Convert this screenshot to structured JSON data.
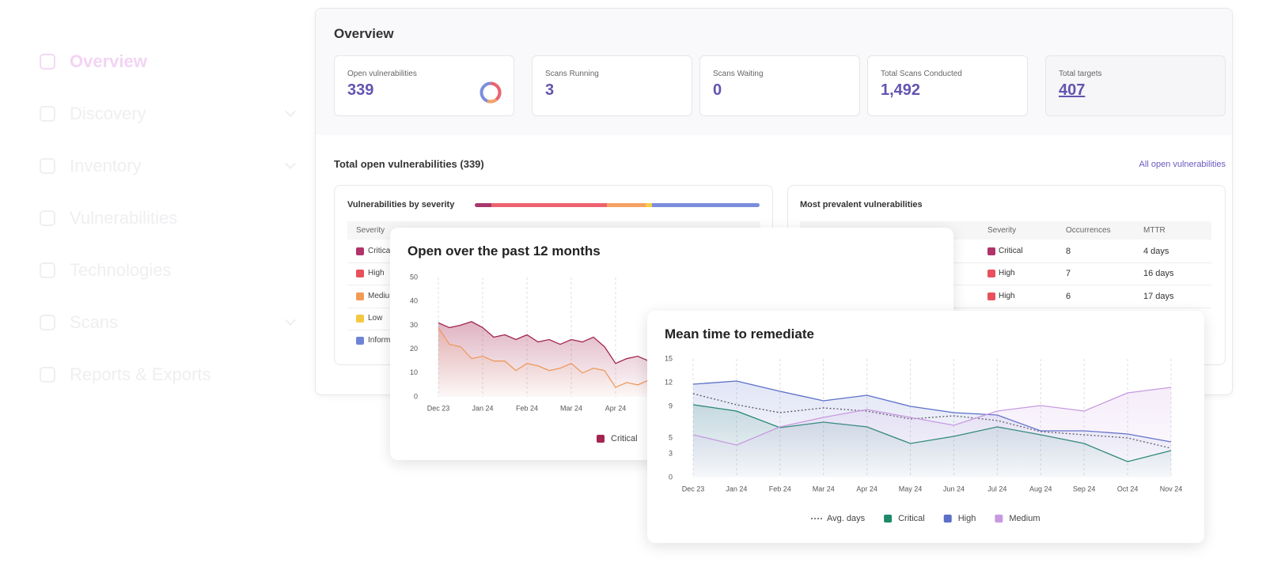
{
  "sidebar": {
    "items": [
      "Overview",
      "Discovery",
      "Inventory",
      "Vulnerabilities",
      "Technologies",
      "Scans",
      "Reports & Exports"
    ]
  },
  "overview": {
    "title": "Overview",
    "stats": [
      {
        "label": "Open vulnerabilities",
        "value": "339"
      },
      {
        "label": "Scans Running",
        "value": "3"
      },
      {
        "label": "Scans Waiting",
        "value": "0"
      },
      {
        "label": "Total Scans Conducted",
        "value": "1,492"
      },
      {
        "label": "Total targets",
        "value": "407"
      }
    ]
  },
  "vulnerabilities": {
    "title": "Total open vulnerabilities (339)",
    "link": "All open vulnerabilities",
    "severity_card": {
      "title": "Vulnerabilities by severity",
      "bar": {
        "type": "bar",
        "values": [
          20,
          137,
          46,
          8,
          128
        ],
        "colors": [
          "#a8386b",
          "#ee6270",
          "#f4a162",
          "#f5cd45",
          "#7b8ddc"
        ]
      },
      "header": "Severity",
      "rows": [
        "Critical",
        "High",
        "Medium",
        "Low",
        "Informational"
      ],
      "colors": [
        "#b0336a",
        "#e8505b",
        "#f29a58",
        "#f5c842",
        "#6f83d6"
      ]
    },
    "prevalent_card": {
      "title": "Most prevalent vulnerabilities",
      "columns": [
        "Severity",
        "Occurrences",
        "MTTR"
      ],
      "rows": [
        [
          "Critical",
          "8",
          "4 days"
        ],
        [
          "High",
          "7",
          "16 days"
        ],
        [
          "High",
          "6",
          "17 days"
        ]
      ],
      "colors": [
        "#b0336a",
        "#e8505b",
        "#e8505b"
      ]
    }
  },
  "open_chart": {
    "type": "line",
    "title": "Open over the past 12 months",
    "x": [
      0,
      0.25,
      0.5,
      0.75,
      1,
      1.25,
      1.5,
      1.75,
      2,
      2.25,
      2.5,
      2.75,
      3,
      3.25,
      3.5,
      3.75,
      4,
      4.25,
      4.5,
      4.75
    ],
    "xlim": [
      0,
      11
    ],
    "xticks": [
      {
        "value": 0,
        "label": "Dec 23"
      },
      {
        "value": 1,
        "label": "Jan 24"
      },
      {
        "value": 2,
        "label": "Feb 24"
      },
      {
        "value": 3,
        "label": "Mar 24"
      },
      {
        "value": 4,
        "label": "Apr 24"
      }
    ],
    "ylim": [
      0,
      50
    ],
    "yticks": [
      0,
      10,
      20,
      30,
      40,
      50
    ],
    "grid": true,
    "area": true,
    "series": [
      {
        "name": "Critical",
        "color": "#a3264f",
        "values": [
          31,
          29,
          30,
          31.5,
          29,
          25,
          26,
          24,
          26,
          23,
          24,
          22,
          24,
          23,
          25,
          21,
          14,
          16,
          17,
          15
        ]
      },
      {
        "color": "#ee9a5e",
        "values": [
          29,
          22,
          21,
          16,
          17,
          15,
          15,
          11,
          14,
          13,
          11,
          12,
          14,
          10,
          12,
          11,
          4,
          6,
          5,
          7
        ]
      }
    ]
  },
  "mttr_chart": {
    "type": "line",
    "title": "Mean time to remediate",
    "x": [
      0,
      1,
      2,
      3,
      4,
      5,
      6,
      7,
      8,
      9,
      10,
      11
    ],
    "xlim": [
      0,
      11
    ],
    "xticks": [
      {
        "value": 0,
        "label": "Dec 23"
      },
      {
        "value": 1,
        "label": "Jan 24"
      },
      {
        "value": 2,
        "label": "Feb 24"
      },
      {
        "value": 3,
        "label": "Mar 24"
      },
      {
        "value": 4,
        "label": "Apr 24"
      },
      {
        "value": 5,
        "label": "May 24"
      },
      {
        "value": 6,
        "label": "Jun 24"
      },
      {
        "value": 7,
        "label": "Jul 24"
      },
      {
        "value": 8,
        "label": "Aug 24"
      },
      {
        "value": 9,
        "label": "Sep 24"
      },
      {
        "value": 10,
        "label": "Oct 24"
      },
      {
        "value": 11,
        "label": "Nov 24"
      }
    ],
    "ylim": [
      0,
      15
    ],
    "yticks": [
      0,
      3,
      5,
      9,
      12,
      15
    ],
    "grid": true,
    "area": true,
    "series": [
      {
        "name": "Avg. days",
        "color": "#555555",
        "dash": "dotted",
        "values": [
          10.6,
          9.2,
          8.2,
          8.8,
          8.4,
          7.4,
          7.8,
          7.2,
          5.8,
          5.4,
          5,
          3.7
        ]
      },
      {
        "name": "Critical",
        "color": "#1f8a6a",
        "values": [
          9.2,
          8.4,
          6.3,
          7,
          6.4,
          4.3,
          5.2,
          6.4,
          5.4,
          4.3,
          2,
          3.4
        ]
      },
      {
        "name": "High",
        "color": "#5b6fc8",
        "values": [
          11.8,
          12.2,
          10.9,
          9.7,
          10.4,
          9,
          8.2,
          7.9,
          5.9,
          5.9,
          5.5,
          4.5
        ]
      },
      {
        "name": "Medium",
        "color": "#c79ae0",
        "values": [
          5.4,
          4.1,
          6.4,
          7.6,
          8.6,
          7.6,
          6.6,
          8.4,
          9.1,
          8.4,
          10.7,
          11.4
        ]
      }
    ]
  }
}
